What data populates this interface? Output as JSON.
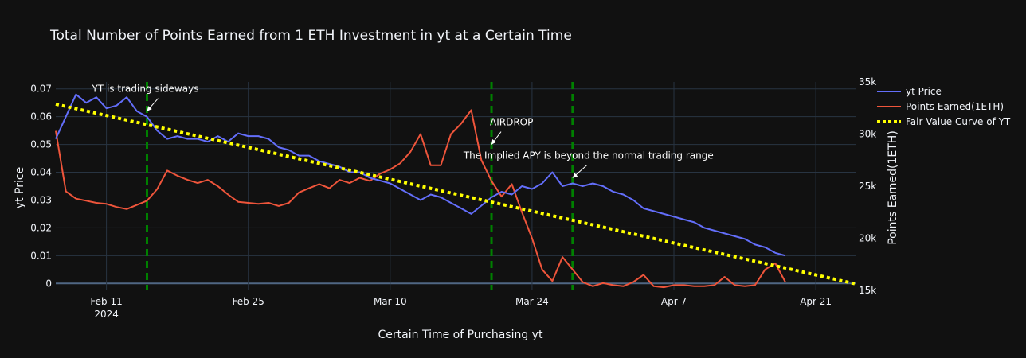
{
  "chart_data": {
    "type": "line",
    "title": "Total Number of Points Earned from 1 ETH Investment in yt at a Certain Time",
    "xlabel": "Certain Time of Purchasing yt",
    "ylabel": "yt Price",
    "y2label": "Points Earned(1ETH)",
    "x_range": [
      "2024-02-06",
      "2024-04-25"
    ],
    "ylim": [
      -0.0025,
      0.0725
    ],
    "y2lim": [
      15000,
      35000
    ],
    "x_ticks": [
      {
        "date": "2024-02-11",
        "label": "Feb 11",
        "sub": "2024"
      },
      {
        "date": "2024-02-25",
        "label": "Feb 25",
        "sub": ""
      },
      {
        "date": "2024-03-10",
        "label": "Mar 10",
        "sub": ""
      },
      {
        "date": "2024-03-24",
        "label": "Mar 24",
        "sub": ""
      },
      {
        "date": "2024-04-07",
        "label": "Apr 7",
        "sub": ""
      },
      {
        "date": "2024-04-21",
        "label": "Apr 21",
        "sub": ""
      }
    ],
    "y_ticks": [
      0,
      0.01,
      0.02,
      0.03,
      0.04,
      0.05,
      0.06,
      0.07
    ],
    "y_tick_labels": [
      "0",
      "0.01",
      "0.02",
      "0.03",
      "0.04",
      "0.05",
      "0.06",
      "0.07"
    ],
    "y2_ticks": [
      15000,
      20000,
      25000,
      30000,
      35000
    ],
    "y2_tick_labels": [
      "15k",
      "20k",
      "25k",
      "30k",
      "35k"
    ],
    "grid": true,
    "legend_position": "top-right",
    "series": [
      {
        "name": "yt Price",
        "axis": "y",
        "color": "#636efa",
        "style": "solid",
        "points": [
          [
            "2024-02-06",
            0.052
          ],
          [
            "2024-02-07",
            0.06
          ],
          [
            "2024-02-08",
            0.068
          ],
          [
            "2024-02-09",
            0.065
          ],
          [
            "2024-02-10",
            0.067
          ],
          [
            "2024-02-11",
            0.063
          ],
          [
            "2024-02-12",
            0.064
          ],
          [
            "2024-02-13",
            0.067
          ],
          [
            "2024-02-14",
            0.062
          ],
          [
            "2024-02-15",
            0.06
          ],
          [
            "2024-02-16",
            0.055
          ],
          [
            "2024-02-17",
            0.052
          ],
          [
            "2024-02-18",
            0.053
          ],
          [
            "2024-02-19",
            0.052
          ],
          [
            "2024-02-20",
            0.052
          ],
          [
            "2024-02-21",
            0.051
          ],
          [
            "2024-02-22",
            0.053
          ],
          [
            "2024-02-23",
            0.051
          ],
          [
            "2024-02-24",
            0.054
          ],
          [
            "2024-02-25",
            0.053
          ],
          [
            "2024-02-26",
            0.053
          ],
          [
            "2024-02-27",
            0.052
          ],
          [
            "2024-02-28",
            0.049
          ],
          [
            "2024-02-29",
            0.048
          ],
          [
            "2024-03-01",
            0.046
          ],
          [
            "2024-03-02",
            0.046
          ],
          [
            "2024-03-03",
            0.044
          ],
          [
            "2024-03-04",
            0.043
          ],
          [
            "2024-03-05",
            0.042
          ],
          [
            "2024-03-06",
            0.04
          ],
          [
            "2024-03-07",
            0.04
          ],
          [
            "2024-03-08",
            0.038
          ],
          [
            "2024-03-09",
            0.037
          ],
          [
            "2024-03-10",
            0.036
          ],
          [
            "2024-03-11",
            0.034
          ],
          [
            "2024-03-12",
            0.032
          ],
          [
            "2024-03-13",
            0.03
          ],
          [
            "2024-03-14",
            0.032
          ],
          [
            "2024-03-15",
            0.031
          ],
          [
            "2024-03-16",
            0.029
          ],
          [
            "2024-03-17",
            0.027
          ],
          [
            "2024-03-18",
            0.025
          ],
          [
            "2024-03-19",
            0.028
          ],
          [
            "2024-03-20",
            0.031
          ],
          [
            "2024-03-21",
            0.033
          ],
          [
            "2024-03-22",
            0.032
          ],
          [
            "2024-03-23",
            0.035
          ],
          [
            "2024-03-24",
            0.034
          ],
          [
            "2024-03-25",
            0.036
          ],
          [
            "2024-03-26",
            0.04
          ],
          [
            "2024-03-27",
            0.035
          ],
          [
            "2024-03-28",
            0.036
          ],
          [
            "2024-03-29",
            0.035
          ],
          [
            "2024-03-30",
            0.036
          ],
          [
            "2024-03-31",
            0.035
          ],
          [
            "2024-04-01",
            0.033
          ],
          [
            "2024-04-02",
            0.032
          ],
          [
            "2024-04-03",
            0.03
          ],
          [
            "2024-04-04",
            0.027
          ],
          [
            "2024-04-05",
            0.026
          ],
          [
            "2024-04-06",
            0.025
          ],
          [
            "2024-04-07",
            0.024
          ],
          [
            "2024-04-08",
            0.023
          ],
          [
            "2024-04-09",
            0.022
          ],
          [
            "2024-04-10",
            0.02
          ],
          [
            "2024-04-11",
            0.019
          ],
          [
            "2024-04-12",
            0.018
          ],
          [
            "2024-04-13",
            0.017
          ],
          [
            "2024-04-14",
            0.016
          ],
          [
            "2024-04-15",
            0.014
          ],
          [
            "2024-04-16",
            0.013
          ],
          [
            "2024-04-17",
            0.011
          ],
          [
            "2024-04-18",
            0.01
          ]
        ]
      },
      {
        "name": "Points Earned(1ETH)",
        "axis": "y2",
        "color": "#ef553b",
        "style": "solid",
        "points": [
          [
            "2024-02-06",
            30300
          ],
          [
            "2024-02-07",
            24500
          ],
          [
            "2024-02-08",
            23800
          ],
          [
            "2024-02-09",
            23600
          ],
          [
            "2024-02-10",
            23400
          ],
          [
            "2024-02-11",
            23300
          ],
          [
            "2024-02-12",
            23000
          ],
          [
            "2024-02-13",
            22800
          ],
          [
            "2024-02-14",
            23200
          ],
          [
            "2024-02-15",
            23600
          ],
          [
            "2024-02-16",
            24700
          ],
          [
            "2024-02-17",
            26500
          ],
          [
            "2024-02-18",
            26000
          ],
          [
            "2024-02-19",
            25600
          ],
          [
            "2024-02-20",
            25300
          ],
          [
            "2024-02-21",
            25600
          ],
          [
            "2024-02-22",
            25000
          ],
          [
            "2024-02-23",
            24200
          ],
          [
            "2024-02-24",
            23500
          ],
          [
            "2024-02-25",
            23400
          ],
          [
            "2024-02-26",
            23300
          ],
          [
            "2024-02-27",
            23400
          ],
          [
            "2024-02-28",
            23100
          ],
          [
            "2024-02-29",
            23400
          ],
          [
            "2024-03-01",
            24400
          ],
          [
            "2024-03-02",
            24800
          ],
          [
            "2024-03-03",
            25200
          ],
          [
            "2024-03-04",
            24800
          ],
          [
            "2024-03-05",
            25600
          ],
          [
            "2024-03-06",
            25300
          ],
          [
            "2024-03-07",
            25800
          ],
          [
            "2024-03-08",
            25500
          ],
          [
            "2024-03-09",
            26200
          ],
          [
            "2024-03-10",
            26600
          ],
          [
            "2024-03-11",
            27200
          ],
          [
            "2024-03-12",
            28300
          ],
          [
            "2024-03-13",
            30000
          ],
          [
            "2024-03-14",
            27000
          ],
          [
            "2024-03-15",
            27000
          ],
          [
            "2024-03-16",
            30000
          ],
          [
            "2024-03-17",
            31000
          ],
          [
            "2024-03-18",
            32300
          ],
          [
            "2024-03-19",
            27500
          ],
          [
            "2024-03-20",
            25500
          ],
          [
            "2024-03-21",
            24000
          ],
          [
            "2024-03-22",
            25200
          ],
          [
            "2024-03-23",
            22500
          ],
          [
            "2024-03-24",
            20000
          ],
          [
            "2024-03-25",
            17000
          ],
          [
            "2024-03-26",
            15900
          ],
          [
            "2024-03-27",
            18200
          ],
          [
            "2024-03-28",
            17000
          ],
          [
            "2024-03-29",
            15800
          ],
          [
            "2024-03-30",
            15400
          ],
          [
            "2024-03-31",
            15700
          ],
          [
            "2024-04-01",
            15500
          ],
          [
            "2024-04-02",
            15400
          ],
          [
            "2024-04-03",
            15800
          ],
          [
            "2024-04-04",
            16500
          ],
          [
            "2024-04-05",
            15400
          ],
          [
            "2024-04-06",
            15300
          ],
          [
            "2024-04-07",
            15500
          ],
          [
            "2024-04-08",
            15500
          ],
          [
            "2024-04-09",
            15400
          ],
          [
            "2024-04-10",
            15400
          ],
          [
            "2024-04-11",
            15500
          ],
          [
            "2024-04-12",
            16300
          ],
          [
            "2024-04-13",
            15500
          ],
          [
            "2024-04-14",
            15400
          ],
          [
            "2024-04-15",
            15500
          ],
          [
            "2024-04-16",
            17000
          ],
          [
            "2024-04-17",
            17600
          ],
          [
            "2024-04-18",
            15800
          ]
        ]
      },
      {
        "name": "Fair Value Curve of YT",
        "axis": "y",
        "color": "#ffff00",
        "style": "dotted",
        "points": [
          [
            "2024-02-06",
            0.0645
          ],
          [
            "2024-04-25",
            -0.0002
          ]
        ]
      }
    ],
    "vlines": {
      "color": "#008000",
      "dates": [
        "2024-02-15",
        "2024-03-20",
        "2024-03-28"
      ]
    },
    "annotations": [
      {
        "text": "YT is trading sideways",
        "date": "2024-02-15",
        "y": 0.062,
        "anchor": "center"
      },
      {
        "text": "AIRDROP",
        "date": "2024-03-20",
        "y": 0.05,
        "anchor": "start"
      },
      {
        "text": "The Implied APY is beyond the normal trading range",
        "date": "2024-03-28",
        "y": 0.038,
        "anchor": "center"
      }
    ]
  }
}
